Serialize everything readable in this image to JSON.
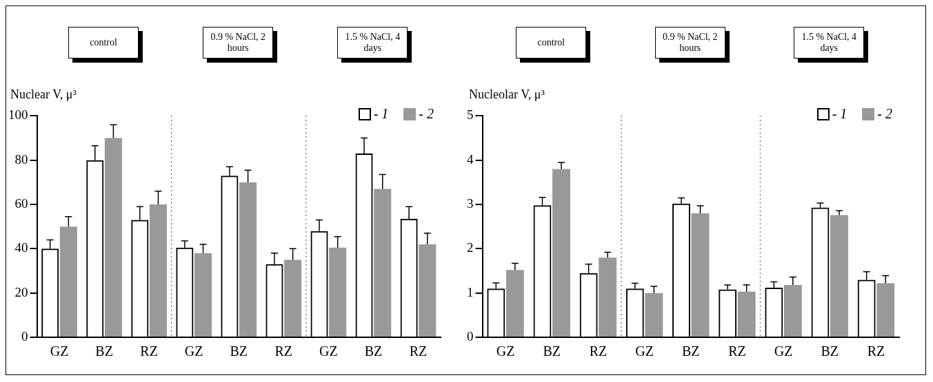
{
  "chart_data": [
    {
      "type": "bar",
      "ylabel": "Nuclear V, μ³",
      "categories": [
        "GZ",
        "BZ",
        "RZ",
        "GZ",
        "BZ",
        "RZ",
        "GZ",
        "BZ",
        "RZ"
      ],
      "series": [
        {
          "name": "- 1",
          "color": "#000000",
          "values": [
            40,
            80,
            53,
            40.5,
            73,
            33,
            48,
            83,
            53.5
          ],
          "errors": [
            4,
            6.5,
            6,
            3,
            4,
            5,
            5,
            7,
            5.5
          ]
        },
        {
          "name": "- 2",
          "color": "#999999",
          "values": [
            50,
            90,
            60,
            38,
            70,
            35,
            40.5,
            67,
            42
          ],
          "errors": [
            4.5,
            6,
            6,
            4,
            5.5,
            5,
            5,
            6.5,
            5
          ]
        }
      ],
      "ylim": [
        0,
        100
      ],
      "yticks": [
        0,
        20,
        40,
        60,
        80,
        100
      ],
      "grid": false,
      "legend": "top right",
      "annotations": [
        "control",
        "0.9 % NaCl, 2 hours",
        "1.5 % NaCl, 4 days"
      ]
    },
    {
      "type": "bar",
      "ylabel": "Nucleolar V, μ³",
      "categories": [
        "GZ",
        "BZ",
        "RZ",
        "GZ",
        "BZ",
        "RZ",
        "GZ",
        "BZ",
        "RZ"
      ],
      "series": [
        {
          "name": "- 1",
          "color": "#000000",
          "values": [
            1.1,
            2.98,
            1.45,
            1.1,
            3.02,
            1.08,
            1.12,
            2.93,
            1.3
          ],
          "errors": [
            0.13,
            0.18,
            0.2,
            0.12,
            0.13,
            0.1,
            0.13,
            0.1,
            0.18
          ]
        },
        {
          "name": "- 2",
          "color": "#999999",
          "values": [
            1.52,
            3.8,
            1.8,
            1.0,
            2.8,
            1.03,
            1.18,
            2.76,
            1.22
          ],
          "errors": [
            0.15,
            0.15,
            0.12,
            0.15,
            0.17,
            0.15,
            0.18,
            0.1,
            0.17
          ]
        }
      ],
      "ylim": [
        0,
        5
      ],
      "yticks": [
        0,
        1,
        2,
        3,
        4,
        5
      ],
      "grid": false,
      "legend": "top right",
      "annotations": [
        "control",
        "0.9 % NaCl, 2 hours",
        "1.5 % NaCl, 4 days"
      ]
    }
  ]
}
